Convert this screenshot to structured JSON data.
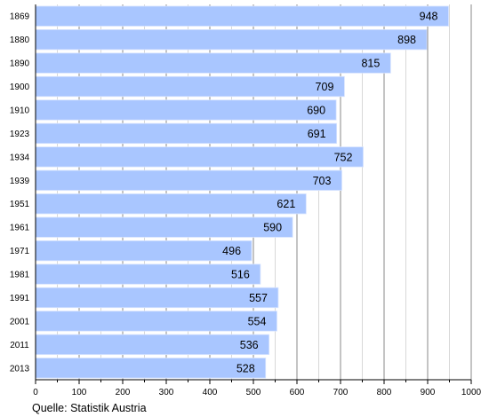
{
  "chart_data": {
    "type": "bar",
    "orientation": "horizontal",
    "categories": [
      "1869",
      "1880",
      "1890",
      "1900",
      "1910",
      "1923",
      "1934",
      "1939",
      "1951",
      "1961",
      "1971",
      "1981",
      "1991",
      "2001",
      "2011",
      "2013"
    ],
    "values": [
      948,
      898,
      815,
      709,
      690,
      691,
      752,
      703,
      621,
      590,
      496,
      516,
      557,
      554,
      536,
      528
    ],
    "xlim": [
      0,
      1000
    ],
    "x_ticks": [
      0,
      100,
      200,
      300,
      400,
      500,
      600,
      700,
      800,
      900,
      1000
    ],
    "grid": "vertical",
    "bar_color": "#a9c6ff",
    "bar_edge_color": "#d6e3ff",
    "grid_color": "#bfbfbf",
    "grid_major_color": "#8a8a8a",
    "data_labels": true
  },
  "footer": {
    "source": "Quelle: Statistik Austria"
  }
}
